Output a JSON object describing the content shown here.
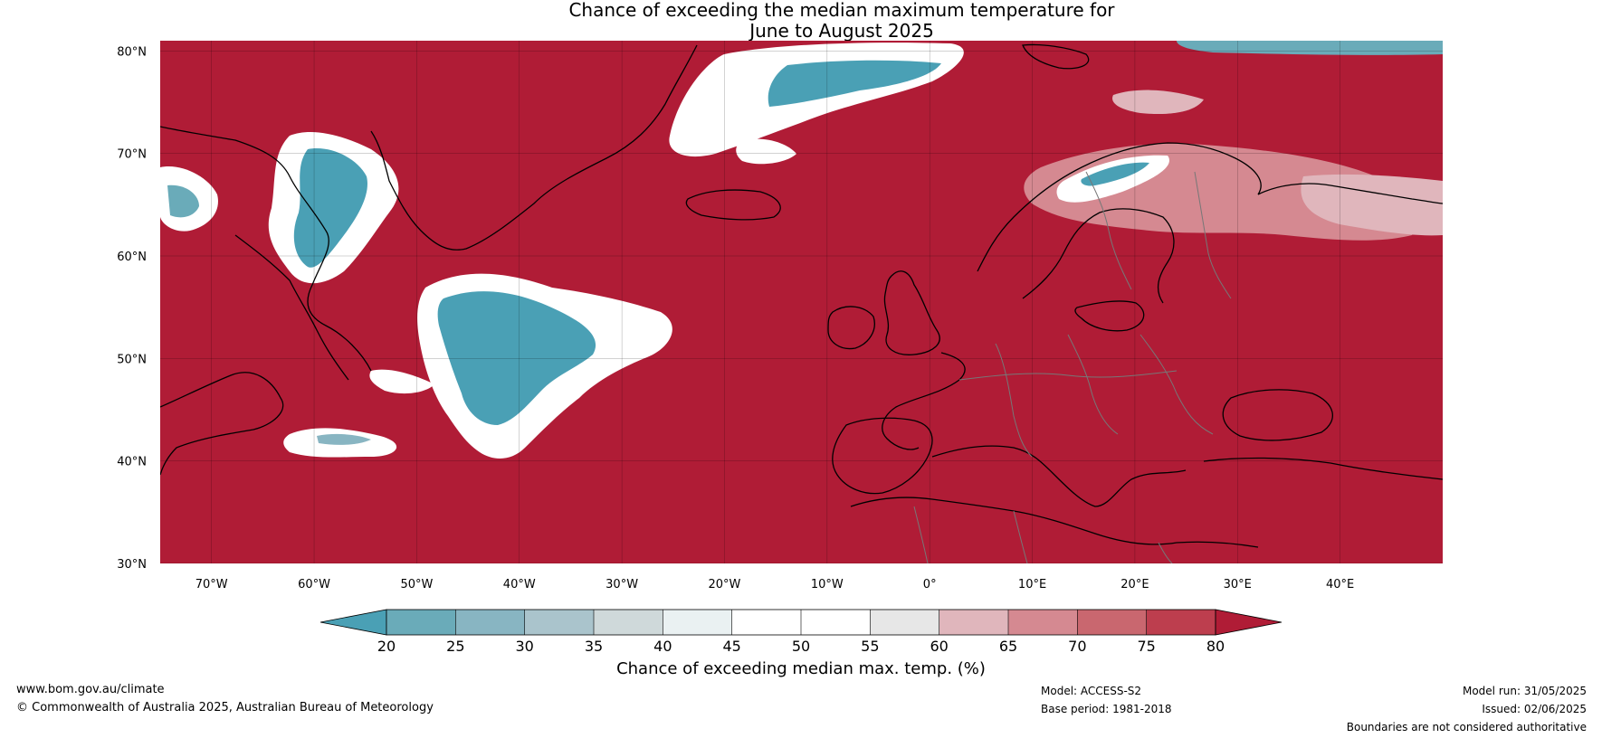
{
  "title": {
    "line1": "Chance of exceeding the median maximum temperature for",
    "line2": "June to August 2025"
  },
  "map": {
    "lat_labels": [
      "80°N",
      "70°N",
      "60°N",
      "50°N",
      "40°N",
      "30°N"
    ],
    "lon_labels": [
      "70°W",
      "60°W",
      "50°W",
      "40°W",
      "30°W",
      "20°W",
      "10°W",
      "0°",
      "10°E",
      "20°E",
      "30°E",
      "40°E"
    ],
    "lat_range": [
      30,
      81
    ],
    "lon_range": [
      -75,
      50
    ],
    "background_color": "#b01c36"
  },
  "colorbar": {
    "title": "Chance of exceeding median max. temp. (%)",
    "ticks": [
      "20",
      "25",
      "30",
      "35",
      "40",
      "45",
      "50",
      "55",
      "60",
      "65",
      "70",
      "75",
      "80"
    ],
    "under_color": "#4aa0b5",
    "over_color": "#b01c36",
    "colors": [
      "#6aabb9",
      "#88b5c2",
      "#aac4cc",
      "#cfd9da",
      "#eaf1f2",
      "#ffffff",
      "#ffffff",
      "#e7e7e7",
      "#e0b6bc",
      "#d58991",
      "#c9676f",
      "#bd3e4e"
    ]
  },
  "footer": {
    "website": "www.bom.gov.au/climate",
    "copyright": "© Commonwealth of Australia 2025, Australian Bureau of Meteorology",
    "model": "Model: ACCESS-S2",
    "base_period": "Base period: 1981-2018",
    "model_run": "Model run: 31/05/2025",
    "issued": "Issued: 02/06/2025",
    "boundaries": "Boundaries are not considered authoritative"
  }
}
